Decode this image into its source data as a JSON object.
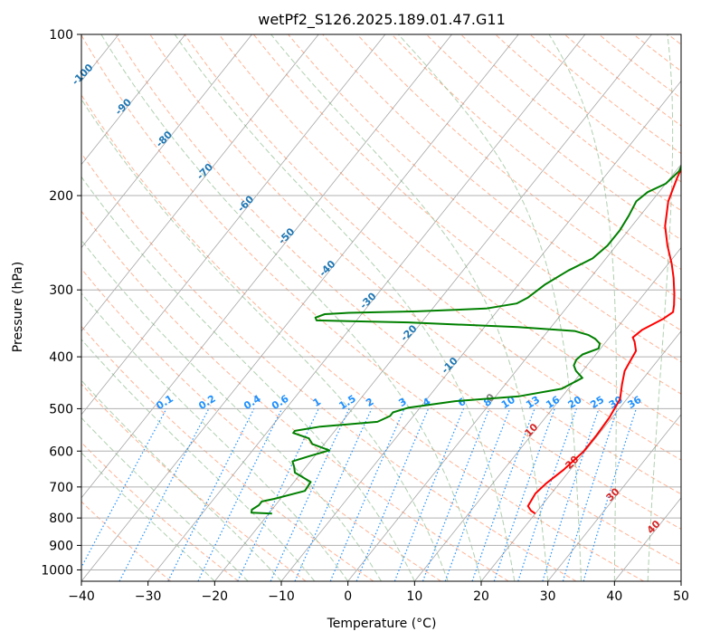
{
  "chart_data": {
    "type": "line",
    "title": "wetPf2_S126.2025.189.01.47.G11",
    "xlabel": "Temperature (°C)",
    "ylabel": "Pressure (hPa)",
    "xlim": [
      -40,
      50
    ],
    "ylim": [
      1050,
      100
    ],
    "y_scale": "log",
    "x_ticks": [
      -40,
      -30,
      -20,
      -10,
      0,
      10,
      20,
      30,
      40,
      50
    ],
    "x_tick_labels": [
      "−40",
      "−30",
      "−20",
      "−10",
      "0",
      "10",
      "20",
      "30",
      "40",
      "50"
    ],
    "y_ticks": [
      1000,
      900,
      800,
      700,
      600,
      500,
      400,
      300,
      200,
      100
    ],
    "y_tick_labels": [
      "1000",
      "900",
      "800",
      "700",
      "600",
      "500",
      "400",
      "300",
      "200",
      "100"
    ],
    "grid": true,
    "colors": {
      "temperature": "#ff0000",
      "dewpoint": "#008000",
      "dry_adiabat": "#ffa07a",
      "moist_adiabat": "#8fbc8f",
      "mixing_ratio": "#1e90ff",
      "isotherm": "#808080",
      "isotherm_label_neg": "#1f77b4",
      "isotherm_label_pos": "#d62728",
      "isotherm_label_zero": "#808080"
    },
    "series": [
      {
        "key": "temperature",
        "points": [
          [
            20.0,
            785
          ],
          [
            19.0,
            775
          ],
          [
            18.0,
            760
          ],
          [
            17.6,
            720
          ],
          [
            18.0,
            690
          ],
          [
            19.0,
            650
          ],
          [
            19.8,
            600
          ],
          [
            19.8,
            560
          ],
          [
            19.6,
            520
          ],
          [
            19.0,
            480
          ],
          [
            17.5,
            450
          ],
          [
            16.3,
            425
          ],
          [
            16.0,
            410
          ],
          [
            15.6,
            390
          ],
          [
            14.3,
            375
          ],
          [
            13.5,
            368
          ],
          [
            14.0,
            356
          ],
          [
            15.8,
            340
          ],
          [
            16.5,
            330
          ],
          [
            15.8,
            320
          ],
          [
            14.5,
            305
          ],
          [
            12.5,
            285
          ],
          [
            10.5,
            268
          ],
          [
            7.7,
            248
          ],
          [
            5.0,
            228
          ],
          [
            2.5,
            205
          ],
          [
            1.0,
            185
          ],
          [
            0.0,
            170
          ],
          [
            -1.2,
            158
          ],
          [
            -1.9,
            148
          ],
          [
            -2.3,
            138
          ],
          [
            -1.7,
            131
          ],
          [
            0.5,
            125
          ],
          [
            3.5,
            118
          ],
          [
            6.2,
            110
          ],
          [
            8.0,
            104
          ],
          [
            9.0,
            100
          ]
        ]
      },
      {
        "key": "dewpoint",
        "points": [
          [
            -19.5,
            785
          ],
          [
            -22.7,
            782
          ],
          [
            -23.0,
            772
          ],
          [
            -22.5,
            757
          ],
          [
            -22.5,
            745
          ],
          [
            -21.0,
            737
          ],
          [
            -17.3,
            712
          ],
          [
            -17.5,
            685
          ],
          [
            -21.0,
            658
          ],
          [
            -21.8,
            642
          ],
          [
            -22.7,
            627
          ],
          [
            -20.8,
            613
          ],
          [
            -18.5,
            598
          ],
          [
            -21.8,
            582
          ],
          [
            -23.0,
            568
          ],
          [
            -26.0,
            555
          ],
          [
            -26.0,
            550
          ],
          [
            -22.7,
            540
          ],
          [
            -14.7,
            529
          ],
          [
            -13.5,
            516
          ],
          [
            -13.5,
            508
          ],
          [
            -11.8,
            498
          ],
          [
            -5.5,
            484
          ],
          [
            3.5,
            474
          ],
          [
            9.0,
            459
          ],
          [
            10.8,
            438
          ],
          [
            9.0,
            425
          ],
          [
            8.0,
            415
          ],
          [
            7.7,
            405
          ],
          [
            8.0,
            396
          ],
          [
            9.7,
            386
          ],
          [
            9.3,
            378
          ],
          [
            8.0,
            370
          ],
          [
            6.5,
            364
          ],
          [
            4.0,
            358
          ],
          [
            -5.0,
            352
          ],
          [
            -22.0,
            345
          ],
          [
            -36.0,
            342
          ],
          [
            -36.5,
            338
          ],
          [
            -35.5,
            333
          ],
          [
            -32.0,
            331
          ],
          [
            -22.0,
            329
          ],
          [
            -12.0,
            325
          ],
          [
            -8.0,
            318
          ],
          [
            -7.0,
            310
          ],
          [
            -6.0,
            293
          ],
          [
            -4.2,
            276
          ],
          [
            -2.0,
            262
          ],
          [
            -1.3,
            248
          ],
          [
            -1.3,
            232
          ],
          [
            -1.7,
            218
          ],
          [
            -2.3,
            205
          ],
          [
            -1.7,
            197
          ],
          [
            0.0,
            190
          ],
          [
            0.5,
            180
          ],
          [
            0.0,
            173
          ],
          [
            -0.5,
            167
          ],
          [
            -1.7,
            160
          ],
          [
            -2.3,
            155
          ],
          [
            -2.0,
            148
          ],
          [
            -2.0,
            136
          ],
          [
            -2.0,
            125
          ],
          [
            -1.0,
            114
          ],
          [
            0.5,
            106
          ],
          [
            2.5,
            100
          ]
        ]
      }
    ],
    "isotherm_labels": [
      {
        "t": -100,
        "text": "-100"
      },
      {
        "t": -90,
        "text": "-90"
      },
      {
        "t": -80,
        "text": "-80"
      },
      {
        "t": -70,
        "text": "-70"
      },
      {
        "t": -60,
        "text": "-60"
      },
      {
        "t": -50,
        "text": "-50"
      },
      {
        "t": -40,
        "text": "-40"
      },
      {
        "t": -30,
        "text": "-30"
      },
      {
        "t": -20,
        "text": "-20"
      },
      {
        "t": -10,
        "text": "-10"
      },
      {
        "t": 0,
        "text": "0"
      },
      {
        "t": 10,
        "text": "10"
      },
      {
        "t": 20,
        "text": "20"
      },
      {
        "t": 30,
        "text": "30"
      },
      {
        "t": 40,
        "text": "40"
      }
    ],
    "mixing_ratio_labels": [
      "0.1",
      "0.2",
      "0.4",
      "0.6",
      "1",
      "1.5",
      "2",
      "3",
      "4",
      "6",
      "8",
      "10",
      "13",
      "16",
      "20",
      "25",
      "30",
      "36"
    ]
  }
}
